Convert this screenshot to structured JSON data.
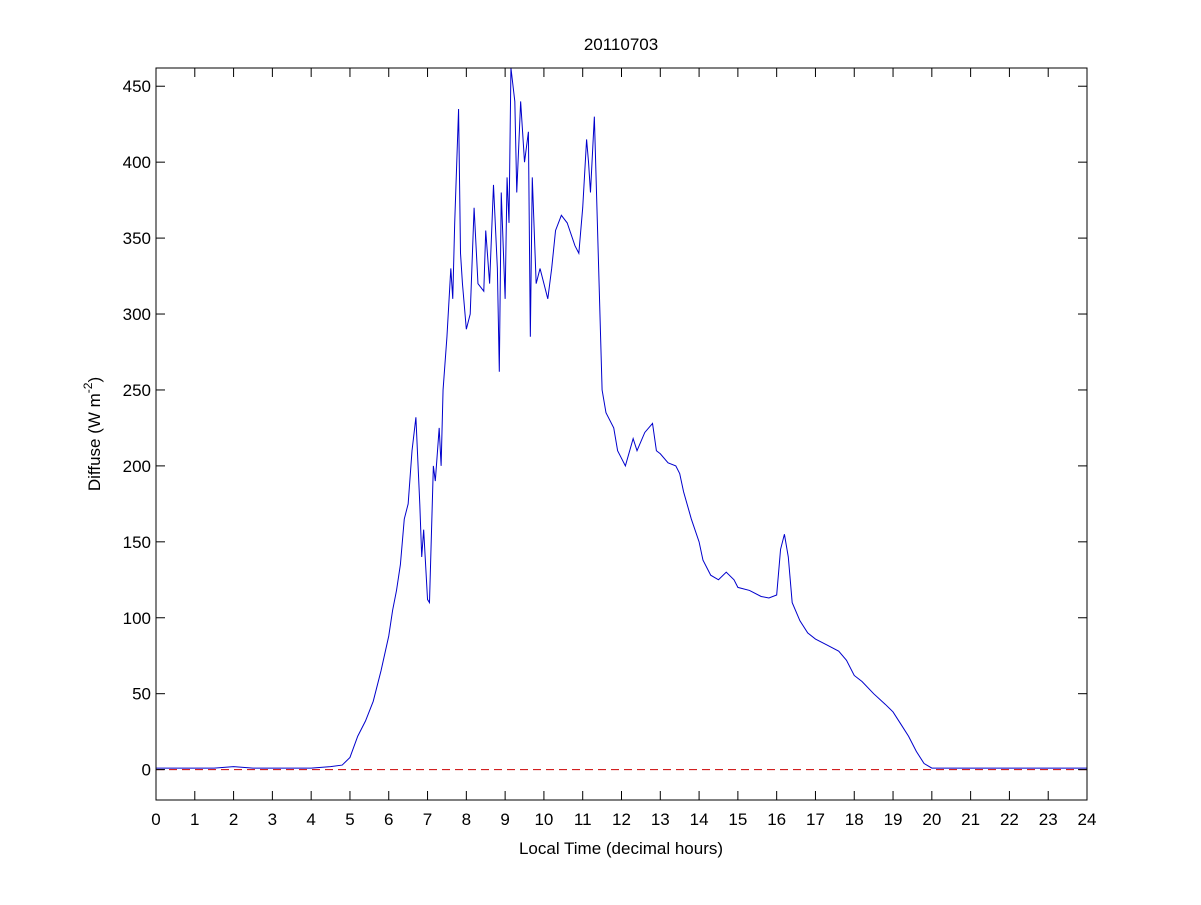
{
  "chart_data": {
    "type": "line",
    "title": "20110703",
    "x_label": "Local Time (decimal hours)",
    "y_label": {
      "text": "Diffuse (W m",
      "superscript": "-2",
      "suffix": ")"
    },
    "x": [
      0,
      0.5,
      1,
      1.5,
      2,
      2.5,
      3,
      3.5,
      4,
      4.5,
      4.8,
      5.0,
      5.2,
      5.4,
      5.6,
      5.8,
      6.0,
      6.1,
      6.2,
      6.3,
      6.4,
      6.5,
      6.6,
      6.7,
      6.8,
      6.85,
      6.9,
      7.0,
      7.05,
      7.15,
      7.2,
      7.3,
      7.35,
      7.4,
      7.5,
      7.6,
      7.65,
      7.7,
      7.8,
      7.85,
      7.9,
      8.0,
      8.1,
      8.2,
      8.3,
      8.45,
      8.5,
      8.6,
      8.7,
      8.8,
      8.85,
      8.9,
      9.0,
      9.05,
      9.1,
      9.15,
      9.25,
      9.3,
      9.4,
      9.5,
      9.6,
      9.65,
      9.7,
      9.8,
      9.9,
      10.0,
      10.1,
      10.2,
      10.3,
      10.45,
      10.6,
      10.8,
      10.9,
      11.0,
      11.1,
      11.15,
      11.2,
      11.3,
      11.4,
      11.5,
      11.6,
      11.8,
      11.9,
      12.0,
      12.1,
      12.3,
      12.4,
      12.6,
      12.8,
      12.9,
      13.0,
      13.2,
      13.4,
      13.5,
      13.6,
      13.8,
      14.0,
      14.1,
      14.3,
      14.5,
      14.7,
      14.9,
      15.0,
      15.3,
      15.6,
      15.8,
      16.0,
      16.1,
      16.2,
      16.3,
      16.4,
      16.6,
      16.8,
      17.0,
      17.3,
      17.6,
      17.8,
      18.0,
      18.2,
      18.5,
      18.8,
      19.0,
      19.2,
      19.4,
      19.6,
      19.8,
      20.0,
      20.5,
      21,
      21.5,
      22,
      23,
      24
    ],
    "series": [
      {
        "color": "#0000cc",
        "values": [
          1,
          1,
          1,
          1,
          2,
          1,
          1,
          1,
          1,
          2,
          3,
          8,
          22,
          32,
          45,
          65,
          88,
          105,
          118,
          135,
          165,
          175,
          210,
          232,
          175,
          140,
          158,
          112,
          110,
          200,
          190,
          225,
          200,
          250,
          285,
          330,
          310,
          360,
          435,
          340,
          320,
          290,
          300,
          370,
          320,
          315,
          355,
          320,
          385,
          330,
          262,
          380,
          310,
          390,
          360,
          462,
          440,
          380,
          440,
          400,
          420,
          285,
          390,
          320,
          330,
          320,
          310,
          330,
          355,
          365,
          360,
          345,
          340,
          370,
          415,
          400,
          380,
          430,
          340,
          250,
          235,
          225,
          210,
          205,
          200,
          218,
          210,
          222,
          228,
          210,
          208,
          202,
          200,
          195,
          183,
          165,
          150,
          138,
          128,
          125,
          130,
          125,
          120,
          118,
          114,
          113,
          115,
          145,
          155,
          140,
          110,
          98,
          90,
          86,
          82,
          78,
          72,
          62,
          58,
          50,
          43,
          38,
          30,
          22,
          12,
          4,
          1,
          1,
          1,
          1,
          1,
          1,
          1
        ]
      }
    ],
    "reference_line": {
      "value": 0,
      "color": "#cc0000",
      "dashed": true
    },
    "xlim": [
      0,
      24
    ],
    "xticks": [
      0,
      1,
      2,
      3,
      4,
      5,
      6,
      7,
      8,
      9,
      10,
      11,
      12,
      13,
      14,
      15,
      16,
      17,
      18,
      19,
      20,
      21,
      22,
      23,
      24
    ],
    "ylim": [
      -20,
      462
    ],
    "yticks": [
      0,
      50,
      100,
      150,
      200,
      250,
      300,
      350,
      400,
      450
    ],
    "grid": false
  }
}
